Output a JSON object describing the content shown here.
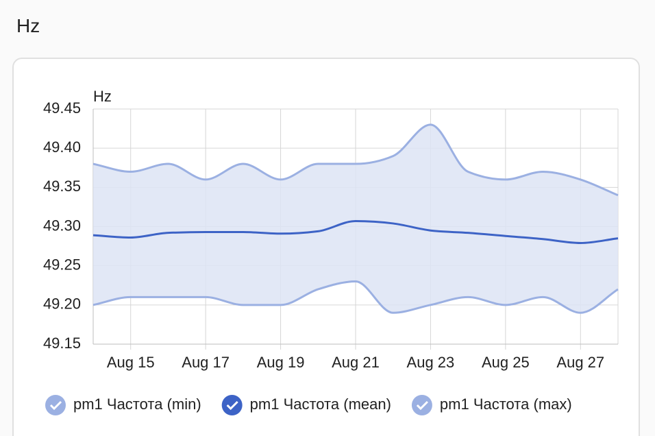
{
  "header": {
    "title": "Hz"
  },
  "chart_data": {
    "type": "line",
    "y_label": "Hz",
    "categories": [
      null,
      "Aug 15",
      null,
      "Aug 17",
      null,
      "Aug 19",
      null,
      "Aug 21",
      null,
      "Aug 23",
      null,
      "Aug 25",
      null,
      "Aug 27",
      null
    ],
    "ylim": [
      49.15,
      49.45
    ],
    "yticks": [
      49.15,
      {
        "value": 49.2,
        "label": "49.20"
      },
      49.25,
      {
        "value": 49.3,
        "label": "49.30"
      },
      49.35,
      {
        "value": 49.4,
        "label": "49.40"
      },
      49.45
    ],
    "grid": true,
    "fill_between": true,
    "series": [
      {
        "name": "pm1 Частота (min)",
        "color": "#9bb0e2",
        "values": [
          49.2,
          49.21,
          49.21,
          49.21,
          49.2,
          49.2,
          49.22,
          49.23,
          49.19,
          49.2,
          49.21,
          49.2,
          49.21,
          49.19,
          49.22
        ]
      },
      {
        "name": "pm1 Частота (mean)",
        "color": "#3d63c6",
        "values": [
          49.289,
          49.286,
          49.292,
          49.293,
          49.293,
          49.291,
          49.294,
          49.307,
          49.304,
          49.295,
          49.292,
          49.288,
          49.284,
          49.279,
          49.285
        ]
      },
      {
        "name": "pm1 Частота (max)",
        "color": "#9bb0e2",
        "values": [
          49.38,
          49.37,
          49.38,
          49.36,
          49.38,
          49.36,
          49.38,
          49.38,
          49.39,
          49.43,
          49.37,
          49.36,
          49.37,
          49.36,
          49.34
        ]
      }
    ]
  }
}
